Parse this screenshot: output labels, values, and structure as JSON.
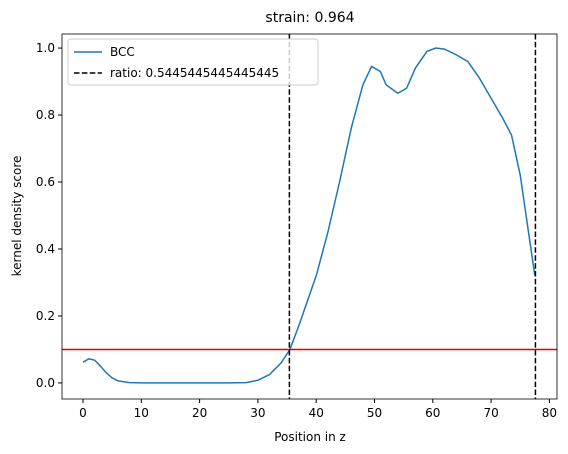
{
  "chart_data": {
    "type": "line",
    "title": "strain: 0.964",
    "xlabel": "Position in z",
    "ylabel": "kernel density score",
    "xlim": [
      -3.6,
      81.3
    ],
    "xticks": [
      0,
      10,
      20,
      30,
      40,
      50,
      60,
      70,
      80
    ],
    "ylim": [
      -0.048,
      1.042
    ],
    "yticks": [
      {
        "value": 0,
        "label": "0.0"
      },
      0.2,
      0.4,
      0.6,
      0.8,
      {
        "value": 1,
        "label": "1.0"
      }
    ],
    "legend": "upper left",
    "series": [
      {
        "name": "BCC",
        "color": "#1f77b4",
        "x": [
          0,
          1,
          2,
          3,
          4,
          5,
          6,
          8,
          10,
          15,
          20,
          25,
          28,
          30,
          32,
          34,
          35.5,
          37,
          40,
          42,
          44,
          46,
          48,
          49.5,
          51,
          52,
          54,
          55.5,
          57,
          59,
          60.5,
          62,
          64,
          66,
          68,
          70,
          72,
          73.5,
          75,
          76,
          77,
          77.5
        ],
        "values": [
          0.062,
          0.072,
          0.068,
          0.05,
          0.03,
          0.015,
          0.006,
          0.001,
          0,
          0,
          0,
          0,
          0.001,
          0.008,
          0.025,
          0.06,
          0.1,
          0.17,
          0.32,
          0.45,
          0.6,
          0.76,
          0.89,
          0.945,
          0.93,
          0.89,
          0.865,
          0.88,
          0.94,
          0.99,
          1.0,
          0.997,
          0.98,
          0.96,
          0.91,
          0.85,
          0.79,
          0.74,
          0.62,
          0.5,
          0.38,
          0.32
        ]
      }
    ],
    "vlines": {
      "name": "ratio: 0.5445445445445445",
      "color": "#000000",
      "values": [
        35.4,
        77.6
      ]
    },
    "hline": {
      "value": 0.1,
      "color": "#e00000"
    }
  }
}
